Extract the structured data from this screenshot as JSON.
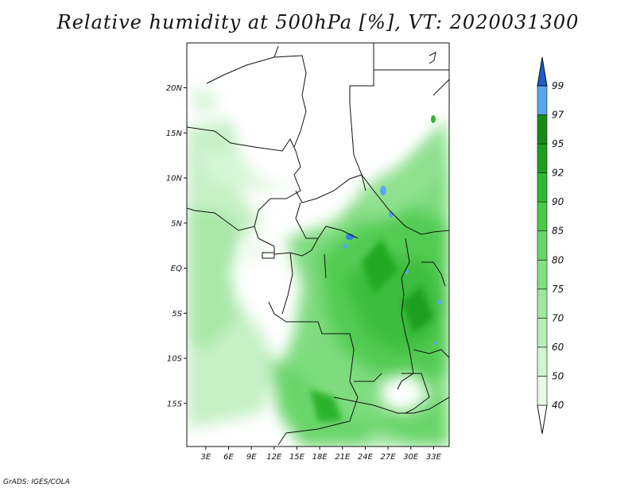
{
  "title": "Relative humidity at 500hPa [%], VT: 2020031300",
  "credit": "GrADS: IGES/COLA",
  "map": {
    "lat_ticks": [
      {
        "label": "20N",
        "lat": 20
      },
      {
        "label": "15N",
        "lat": 15
      },
      {
        "label": "10N",
        "lat": 10
      },
      {
        "label": "5N",
        "lat": 5
      },
      {
        "label": "EQ",
        "lat": 0
      },
      {
        "label": "5S",
        "lat": -5
      },
      {
        "label": "10S",
        "lat": -10
      },
      {
        "label": "15S",
        "lat": -15
      }
    ],
    "lon_ticks": [
      {
        "label": "3E",
        "lon": 3
      },
      {
        "label": "6E",
        "lon": 6
      },
      {
        "label": "9E",
        "lon": 9
      },
      {
        "label": "12E",
        "lon": 12
      },
      {
        "label": "15E",
        "lon": 15
      },
      {
        "label": "18E",
        "lon": 18
      },
      {
        "label": "21E",
        "lon": 21
      },
      {
        "label": "24E",
        "lon": 24
      },
      {
        "label": "27E",
        "lon": 27
      },
      {
        "label": "30E",
        "lon": 30
      },
      {
        "label": "33E",
        "lon": 33
      }
    ]
  },
  "colorbar": {
    "labels": [
      "40",
      "50",
      "60",
      "70",
      "75",
      "80",
      "85",
      "90",
      "92",
      "95",
      "97",
      "99"
    ],
    "colors": [
      "#ffffff",
      "#e6fae6",
      "#d0f5d0",
      "#b8efb8",
      "#9ee89e",
      "#82e082",
      "#66d666",
      "#48cc48",
      "#2fb82f",
      "#1e9e1e",
      "#168a16",
      "#5aa6ee",
      "#2f7fe0",
      "#1a5fc8"
    ]
  }
}
